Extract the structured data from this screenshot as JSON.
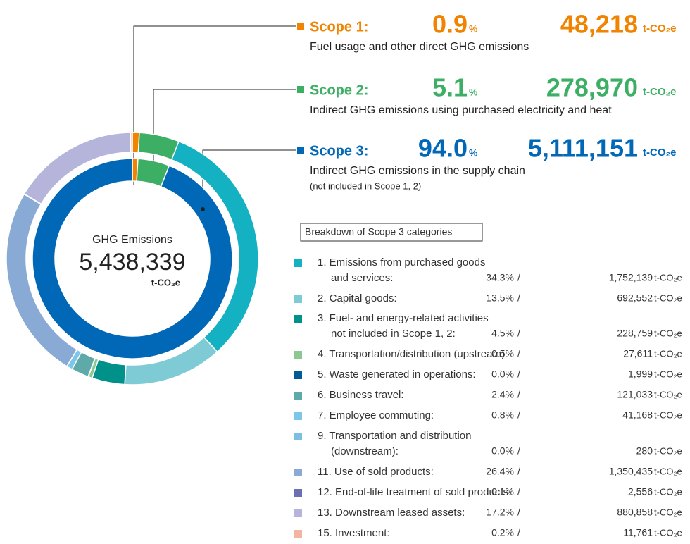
{
  "chart_data": {
    "type": "donut",
    "center": {
      "title": "GHG Emissions",
      "value": 5438339,
      "value_label": "5,438,339",
      "unit": "t-CO₂e"
    },
    "percent_unit": "%",
    "unit": "t-CO₂e",
    "separator": "/",
    "scopes": [
      {
        "name": "Scope 1:",
        "percent": 0.9,
        "value": 48218,
        "value_label": "48,218",
        "color": "#f08300",
        "description": "Fuel usage and other direct GHG emissions"
      },
      {
        "name": "Scope 2:",
        "percent": 5.1,
        "value": 278970,
        "value_label": "278,970",
        "color": "#3daf64",
        "description": "Indirect GHG emissions using purchased electricity and heat"
      },
      {
        "name": "Scope 3:",
        "percent": 94.0,
        "percent_label": "94.0",
        "value": 5111151,
        "value_label": "5,111,151",
        "color": "#0068b7",
        "description": "Indirect GHG emissions in the supply chain",
        "note": "(not included in Scope 1, 2)"
      }
    ],
    "breakdown_title": "Breakdown of Scope 3 categories",
    "categories": [
      {
        "label": [
          "1. Emissions from purchased goods",
          "and services:"
        ],
        "percent": 34.3,
        "percent_label": "34.3%",
        "value": 1752139,
        "value_label": "1,752,139",
        "color": "#14b1c2"
      },
      {
        "label": [
          "2. Capital goods:"
        ],
        "percent": 13.5,
        "percent_label": "13.5%",
        "value": 692552,
        "value_label": "692,552",
        "color": "#7ecbd6"
      },
      {
        "label": [
          "3. Fuel- and energy-related activities",
          "not included in Scope 1, 2:"
        ],
        "percent": 4.5,
        "percent_label": "4.5%",
        "value": 228759,
        "value_label": "228,759",
        "color": "#00918a"
      },
      {
        "label": [
          "4. Transportation/distribution (upstream):"
        ],
        "percent": 0.5,
        "percent_label": "0.5%",
        "value": 27611,
        "value_label": "27,611",
        "color": "#8cc894"
      },
      {
        "label": [
          "5. Waste generated in operations:"
        ],
        "percent": 0.0,
        "percent_label": "0.0%",
        "value": 1999,
        "value_label": "1,999",
        "color": "#005a96"
      },
      {
        "label": [
          "6. Business travel:"
        ],
        "percent": 2.4,
        "percent_label": "2.4%",
        "value": 121033,
        "value_label": "121,033",
        "color": "#5eaaa8"
      },
      {
        "label": [
          "7. Employee commuting:"
        ],
        "percent": 0.8,
        "percent_label": "0.8%",
        "value": 41168,
        "value_label": "41,168",
        "color": "#7cc6ec"
      },
      {
        "label": [
          "9. Transportation and distribution",
          "(downstream):"
        ],
        "percent": 0.0,
        "percent_label": "0.0%",
        "value": 280,
        "value_label": "280",
        "color": "#7dbfe0"
      },
      {
        "label": [
          "11. Use of sold products:"
        ],
        "percent": 26.4,
        "percent_label": "26.4%",
        "value": 1350435,
        "value_label": "1,350,435",
        "color": "#8aaad6"
      },
      {
        "label": [
          "12. End-of-life treatment of sold products:"
        ],
        "percent": 0.1,
        "percent_label": "0.1%",
        "value": 2556,
        "value_label": "2,556",
        "color": "#6a6fb2"
      },
      {
        "label": [
          "13. Downstream leased assets:"
        ],
        "percent": 17.2,
        "percent_label": "17.2%",
        "value": 880858,
        "value_label": "880,858",
        "color": "#b5b4da"
      },
      {
        "label": [
          "15. Investment:"
        ],
        "percent": 0.2,
        "percent_label": "0.2%",
        "value": 11761,
        "value_label": "11,761",
        "color": "#f2b5a4"
      }
    ]
  }
}
